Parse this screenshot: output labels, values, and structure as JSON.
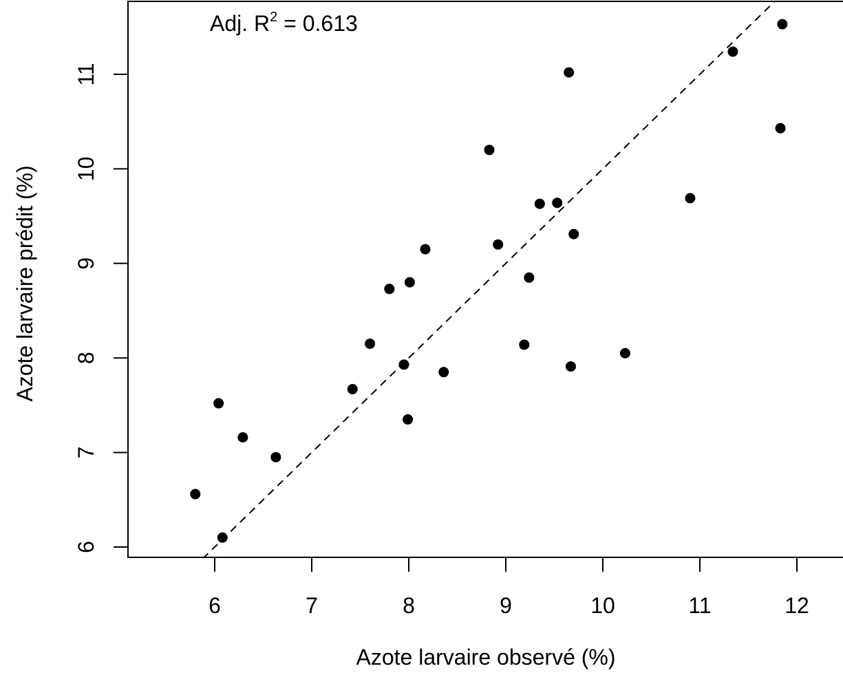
{
  "chart_data": {
    "type": "scatter",
    "xlabel": "Azote larvaire observé (%)",
    "ylabel": "Azote larvaire prédit (%)",
    "annotation": {
      "prefix": "Adj. R",
      "superscript": "2",
      "suffix": " = 0.613"
    },
    "x_ticks": [
      6,
      7,
      8,
      9,
      10,
      11,
      12
    ],
    "y_ticks": [
      6,
      7,
      8,
      9,
      10,
      11
    ],
    "x_tick_labels": [
      "6",
      "7",
      "8",
      "9",
      "10",
      "11",
      "12"
    ],
    "y_tick_labels": [
      "6",
      "7",
      "8",
      "9",
      "10",
      "11"
    ],
    "xlim": [
      5.2,
      12.25
    ],
    "ylim": [
      5.9,
      11.75
    ],
    "reference_line": {
      "type": "identity",
      "style": "dashed",
      "slope": 1,
      "intercept": 0
    },
    "point_color": "#000000",
    "points": [
      {
        "x": 5.8,
        "y": 6.56
      },
      {
        "x": 6.04,
        "y": 7.52
      },
      {
        "x": 6.08,
        "y": 6.1
      },
      {
        "x": 6.29,
        "y": 7.16
      },
      {
        "x": 6.63,
        "y": 6.95
      },
      {
        "x": 7.42,
        "y": 7.67
      },
      {
        "x": 7.6,
        "y": 8.15
      },
      {
        "x": 7.8,
        "y": 8.73
      },
      {
        "x": 7.95,
        "y": 7.93
      },
      {
        "x": 7.99,
        "y": 7.35
      },
      {
        "x": 8.01,
        "y": 8.8
      },
      {
        "x": 8.17,
        "y": 9.15
      },
      {
        "x": 8.36,
        "y": 7.85
      },
      {
        "x": 8.83,
        "y": 10.2
      },
      {
        "x": 8.92,
        "y": 9.2
      },
      {
        "x": 9.19,
        "y": 8.14
      },
      {
        "x": 9.24,
        "y": 8.85
      },
      {
        "x": 9.35,
        "y": 9.63
      },
      {
        "x": 9.53,
        "y": 9.64
      },
      {
        "x": 9.65,
        "y": 11.02
      },
      {
        "x": 9.67,
        "y": 7.91
      },
      {
        "x": 9.7,
        "y": 9.31
      },
      {
        "x": 10.23,
        "y": 8.05
      },
      {
        "x": 10.9,
        "y": 9.69
      },
      {
        "x": 11.34,
        "y": 11.24
      },
      {
        "x": 11.83,
        "y": 10.43
      },
      {
        "x": 11.85,
        "y": 11.53
      }
    ]
  }
}
